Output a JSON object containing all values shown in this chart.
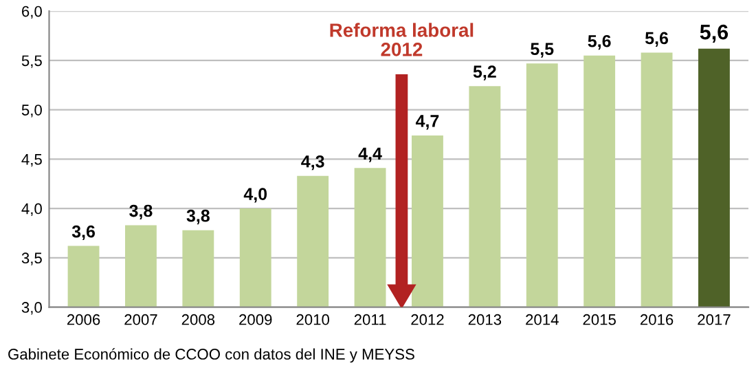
{
  "chart_data": {
    "type": "bar",
    "categories": [
      "2006",
      "2007",
      "2008",
      "2009",
      "2010",
      "2011",
      "2012",
      "2013",
      "2014",
      "2015",
      "2016",
      "2017"
    ],
    "values": [
      3.62,
      3.83,
      3.78,
      4.0,
      4.33,
      4.41,
      4.74,
      5.24,
      5.47,
      5.55,
      5.58,
      5.62
    ],
    "colors": [
      "#c3d69b",
      "#c3d69b",
      "#c3d69b",
      "#c3d69b",
      "#c3d69b",
      "#c3d69b",
      "#c3d69b",
      "#c3d69b",
      "#c3d69b",
      "#c3d69b",
      "#c3d69b",
      "#4f6228"
    ],
    "value_labels": [
      "3,6",
      "3,8",
      "3,8",
      "4,0",
      "4,3",
      "4,4",
      "4,7",
      "5,2",
      "5,5",
      "5,6",
      "5,6",
      "5,6"
    ],
    "ylim": [
      3.0,
      6.0
    ],
    "yticks": [
      {
        "value": 3.0,
        "label": "3,0"
      },
      {
        "value": 3.5,
        "label": "3,5"
      },
      {
        "value": 4.0,
        "label": "4,0"
      },
      {
        "value": 4.5,
        "label": "4,5"
      },
      {
        "value": 5.0,
        "label": "5,0"
      },
      {
        "value": 5.5,
        "label": "5,5"
      },
      {
        "value": 6.0,
        "label": "6,0"
      }
    ],
    "grid": "y",
    "annotations": [
      "Reforma laboral\n2012",
      "Gabinete Económico de CCOO con datos del INE y MEYSS"
    ]
  }
}
